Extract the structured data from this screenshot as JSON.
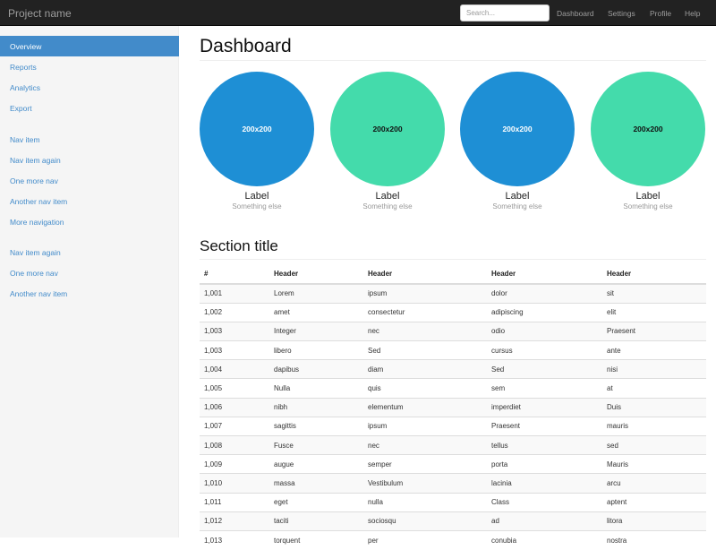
{
  "navbar": {
    "brand": "Project name",
    "search_placeholder": "Search...",
    "links": [
      "Dashboard",
      "Settings",
      "Profile",
      "Help"
    ]
  },
  "sidebar": {
    "groups": [
      [
        "Overview",
        "Reports",
        "Analytics",
        "Export"
      ],
      [
        "Nav item",
        "Nav item again",
        "One more nav",
        "Another nav item",
        "More navigation"
      ],
      [
        "Nav item again",
        "One more nav",
        "Another nav item"
      ]
    ],
    "active": "Overview"
  },
  "main": {
    "title": "Dashboard",
    "placeholders": [
      {
        "image_text": "200x200",
        "label": "Label",
        "sub": "Something else",
        "color": "#1e8fd5",
        "text_color": "#ffffff"
      },
      {
        "image_text": "200x200",
        "label": "Label",
        "sub": "Something else",
        "color": "#44dbab",
        "text_color": "#111111"
      },
      {
        "image_text": "200x200",
        "label": "Label",
        "sub": "Something else",
        "color": "#1e8fd5",
        "text_color": "#ffffff"
      },
      {
        "image_text": "200x200",
        "label": "Label",
        "sub": "Something else",
        "color": "#44dbab",
        "text_color": "#111111"
      }
    ],
    "section_title": "Section title",
    "table": {
      "headers": [
        "#",
        "Header",
        "Header",
        "Header",
        "Header"
      ],
      "rows": [
        [
          "1,001",
          "Lorem",
          "ipsum",
          "dolor",
          "sit"
        ],
        [
          "1,002",
          "amet",
          "consectetur",
          "adipiscing",
          "elit"
        ],
        [
          "1,003",
          "Integer",
          "nec",
          "odio",
          "Praesent"
        ],
        [
          "1,003",
          "libero",
          "Sed",
          "cursus",
          "ante"
        ],
        [
          "1,004",
          "dapibus",
          "diam",
          "Sed",
          "nisi"
        ],
        [
          "1,005",
          "Nulla",
          "quis",
          "sem",
          "at"
        ],
        [
          "1,006",
          "nibh",
          "elementum",
          "imperdiet",
          "Duis"
        ],
        [
          "1,007",
          "sagittis",
          "ipsum",
          "Praesent",
          "mauris"
        ],
        [
          "1,008",
          "Fusce",
          "nec",
          "tellus",
          "sed"
        ],
        [
          "1,009",
          "augue",
          "semper",
          "porta",
          "Mauris"
        ],
        [
          "1,010",
          "massa",
          "Vestibulum",
          "lacinia",
          "arcu"
        ],
        [
          "1,011",
          "eget",
          "nulla",
          "Class",
          "aptent"
        ],
        [
          "1,012",
          "taciti",
          "sociosqu",
          "ad",
          "litora"
        ],
        [
          "1,013",
          "torquent",
          "per",
          "conubia",
          "nostra"
        ]
      ]
    }
  }
}
